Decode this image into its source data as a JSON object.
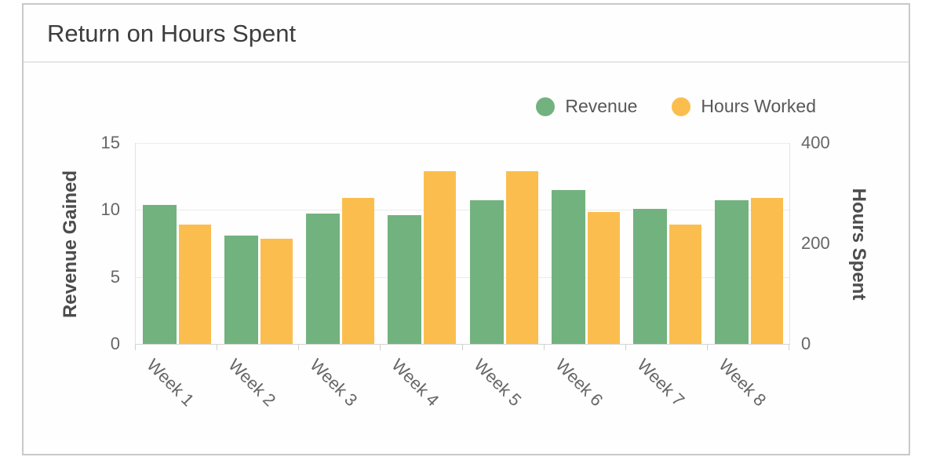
{
  "panel": {
    "title": "Return on Hours Spent"
  },
  "legend": [
    {
      "label": "Revenue",
      "color": "#72b27e"
    },
    {
      "label": "Hours Worked",
      "color": "#fbbe4e"
    }
  ],
  "chart_data": {
    "type": "bar",
    "title": "Return on Hours Spent",
    "categories": [
      "Week 1",
      "Week 2",
      "Week 3",
      "Week 4",
      "Week 5",
      "Week 6",
      "Week 7",
      "Week 8"
    ],
    "series": [
      {
        "name": "Revenue",
        "axis": "left",
        "color": "#72b27e",
        "values": [
          10.4,
          8.1,
          9.7,
          9.6,
          10.7,
          11.5,
          10.1,
          10.7
        ]
      },
      {
        "name": "Hours Worked",
        "axis": "right",
        "color": "#fbbe4e",
        "values": [
          238,
          209,
          291,
          344,
          344,
          262,
          238,
          291
        ]
      }
    ],
    "left_axis": {
      "title": "Revenue Gained",
      "range": [
        0,
        15
      ],
      "ticks": [
        0,
        5,
        10,
        15
      ]
    },
    "right_axis": {
      "title": "Hours Spent",
      "range": [
        0,
        400
      ],
      "ticks": [
        0,
        200,
        400
      ]
    },
    "grid": true,
    "legend_position": "top-right"
  }
}
